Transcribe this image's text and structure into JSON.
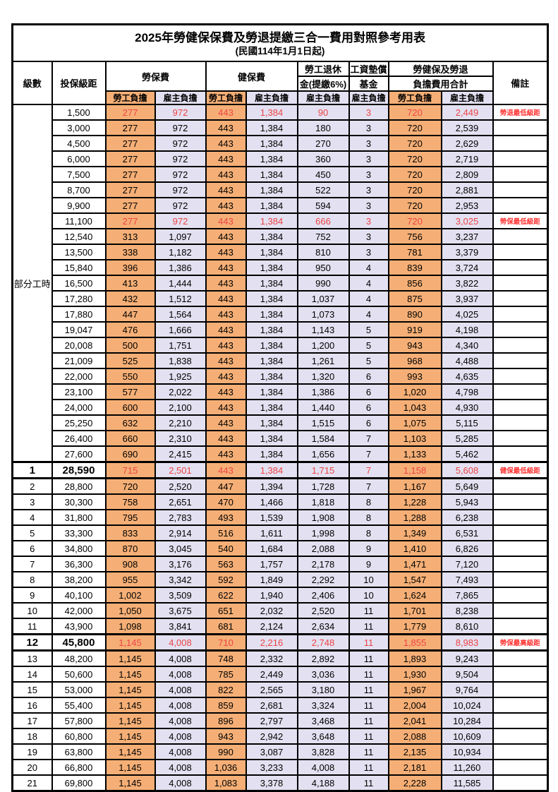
{
  "title": "2025年勞健保保費及勞退提繳三合一費用對照參考用表",
  "subtitle": "(民國114年1月1日起)",
  "colors": {
    "employee_col_bg": "#F5AF76",
    "employer_col_bg": "#E3E1F1",
    "highlight_red": "#EC4446",
    "note_red": "#FF3333",
    "grid": "#000000"
  },
  "header": {
    "level": "級數",
    "salary": "投保級距",
    "labor_fee": "勞保費",
    "health_fee": "健保費",
    "pension_line1": "勞工退休",
    "pension_line2": "金(提繳6%)",
    "wage_fund_line1": "工資墊償",
    "wage_fund_line2": "基金",
    "total_line1": "勞健保及勞退",
    "total_line2": "負擔費用合計",
    "note": "備註",
    "employee": "勞工負擔",
    "employer": "雇主負擔"
  },
  "table": {
    "part_time_label": "部分工時",
    "part_time_rowspan": 23,
    "rows": [
      {
        "level": "",
        "salary": "1,500",
        "v": [
          "277",
          "972",
          "443",
          "1,384",
          "90",
          "3",
          "720",
          "2,449"
        ],
        "note": "勞退最低級距",
        "red": true
      },
      {
        "level": "",
        "salary": "3,000",
        "v": [
          "277",
          "972",
          "443",
          "1,384",
          "180",
          "3",
          "720",
          "2,539"
        ],
        "note": ""
      },
      {
        "level": "",
        "salary": "4,500",
        "v": [
          "277",
          "972",
          "443",
          "1,384",
          "270",
          "3",
          "720",
          "2,629"
        ],
        "note": ""
      },
      {
        "level": "",
        "salary": "6,000",
        "v": [
          "277",
          "972",
          "443",
          "1,384",
          "360",
          "3",
          "720",
          "2,719"
        ],
        "note": ""
      },
      {
        "level": "",
        "salary": "7,500",
        "v": [
          "277",
          "972",
          "443",
          "1,384",
          "450",
          "3",
          "720",
          "2,809"
        ],
        "note": ""
      },
      {
        "level": "",
        "salary": "8,700",
        "v": [
          "277",
          "972",
          "443",
          "1,384",
          "522",
          "3",
          "720",
          "2,881"
        ],
        "note": ""
      },
      {
        "level": "",
        "salary": "9,900",
        "v": [
          "277",
          "972",
          "443",
          "1,384",
          "594",
          "3",
          "720",
          "2,953"
        ],
        "note": ""
      },
      {
        "level": "",
        "salary": "11,100",
        "v": [
          "277",
          "972",
          "443",
          "1,384",
          "666",
          "3",
          "720",
          "3,025"
        ],
        "note": "勞保最低級距",
        "red": true
      },
      {
        "level": "",
        "salary": "12,540",
        "v": [
          "313",
          "1,097",
          "443",
          "1,384",
          "752",
          "3",
          "756",
          "3,237"
        ],
        "note": ""
      },
      {
        "level": "",
        "salary": "13,500",
        "v": [
          "338",
          "1,182",
          "443",
          "1,384",
          "810",
          "3",
          "781",
          "3,379"
        ],
        "note": ""
      },
      {
        "level": "",
        "salary": "15,840",
        "v": [
          "396",
          "1,386",
          "443",
          "1,384",
          "950",
          "4",
          "839",
          "3,724"
        ],
        "note": ""
      },
      {
        "level": "",
        "salary": "16,500",
        "v": [
          "413",
          "1,444",
          "443",
          "1,384",
          "990",
          "4",
          "856",
          "3,822"
        ],
        "note": ""
      },
      {
        "level": "",
        "salary": "17,280",
        "v": [
          "432",
          "1,512",
          "443",
          "1,384",
          "1,037",
          "4",
          "875",
          "3,937"
        ],
        "note": ""
      },
      {
        "level": "",
        "salary": "17,880",
        "v": [
          "447",
          "1,564",
          "443",
          "1,384",
          "1,073",
          "4",
          "890",
          "4,025"
        ],
        "note": ""
      },
      {
        "level": "",
        "salary": "19,047",
        "v": [
          "476",
          "1,666",
          "443",
          "1,384",
          "1,143",
          "5",
          "919",
          "4,198"
        ],
        "note": ""
      },
      {
        "level": "",
        "salary": "20,008",
        "v": [
          "500",
          "1,751",
          "443",
          "1,384",
          "1,200",
          "5",
          "943",
          "4,340"
        ],
        "note": ""
      },
      {
        "level": "",
        "salary": "21,009",
        "v": [
          "525",
          "1,838",
          "443",
          "1,384",
          "1,261",
          "5",
          "968",
          "4,488"
        ],
        "note": ""
      },
      {
        "level": "",
        "salary": "22,000",
        "v": [
          "550",
          "1,925",
          "443",
          "1,384",
          "1,320",
          "6",
          "993",
          "4,635"
        ],
        "note": ""
      },
      {
        "level": "",
        "salary": "23,100",
        "v": [
          "577",
          "2,022",
          "443",
          "1,384",
          "1,386",
          "6",
          "1,020",
          "4,798"
        ],
        "note": ""
      },
      {
        "level": "",
        "salary": "24,000",
        "v": [
          "600",
          "2,100",
          "443",
          "1,384",
          "1,440",
          "6",
          "1,043",
          "4,930"
        ],
        "note": ""
      },
      {
        "level": "",
        "salary": "25,250",
        "v": [
          "632",
          "2,210",
          "443",
          "1,384",
          "1,515",
          "6",
          "1,075",
          "5,115"
        ],
        "note": ""
      },
      {
        "level": "",
        "salary": "26,400",
        "v": [
          "660",
          "2,310",
          "443",
          "1,384",
          "1,584",
          "7",
          "1,103",
          "5,285"
        ],
        "note": ""
      },
      {
        "level": "",
        "salary": "27,600",
        "v": [
          "690",
          "2,415",
          "443",
          "1,384",
          "1,656",
          "7",
          "1,133",
          "5,462"
        ],
        "note": ""
      },
      {
        "level": "1",
        "salary": "28,590",
        "v": [
          "715",
          "2,501",
          "443",
          "1,384",
          "1,715",
          "7",
          "1,158",
          "5,608"
        ],
        "note": "健保最低級距",
        "red": true,
        "bold": true,
        "thick": true
      },
      {
        "level": "2",
        "salary": "28,800",
        "v": [
          "720",
          "2,520",
          "447",
          "1,394",
          "1,728",
          "7",
          "1,167",
          "5,649"
        ],
        "note": ""
      },
      {
        "level": "3",
        "salary": "30,300",
        "v": [
          "758",
          "2,651",
          "470",
          "1,466",
          "1,818",
          "8",
          "1,228",
          "5,943"
        ],
        "note": ""
      },
      {
        "level": "4",
        "salary": "31,800",
        "v": [
          "795",
          "2,783",
          "493",
          "1,539",
          "1,908",
          "8",
          "1,288",
          "6,238"
        ],
        "note": ""
      },
      {
        "level": "5",
        "salary": "33,300",
        "v": [
          "833",
          "2,914",
          "516",
          "1,611",
          "1,998",
          "8",
          "1,349",
          "6,531"
        ],
        "note": ""
      },
      {
        "level": "6",
        "salary": "34,800",
        "v": [
          "870",
          "3,045",
          "540",
          "1,684",
          "2,088",
          "9",
          "1,410",
          "6,826"
        ],
        "note": ""
      },
      {
        "level": "7",
        "salary": "36,300",
        "v": [
          "908",
          "3,176",
          "563",
          "1,757",
          "2,178",
          "9",
          "1,471",
          "7,120"
        ],
        "note": ""
      },
      {
        "level": "8",
        "salary": "38,200",
        "v": [
          "955",
          "3,342",
          "592",
          "1,849",
          "2,292",
          "10",
          "1,547",
          "7,493"
        ],
        "note": ""
      },
      {
        "level": "9",
        "salary": "40,100",
        "v": [
          "1,002",
          "3,509",
          "622",
          "1,940",
          "2,406",
          "10",
          "1,624",
          "7,865"
        ],
        "note": ""
      },
      {
        "level": "10",
        "salary": "42,000",
        "v": [
          "1,050",
          "3,675",
          "651",
          "2,032",
          "2,520",
          "11",
          "1,701",
          "8,238"
        ],
        "note": ""
      },
      {
        "level": "11",
        "salary": "43,900",
        "v": [
          "1,098",
          "3,841",
          "681",
          "2,124",
          "2,634",
          "11",
          "1,779",
          "8,610"
        ],
        "note": ""
      },
      {
        "level": "12",
        "salary": "45,800",
        "v": [
          "1,145",
          "4,008",
          "710",
          "2,216",
          "2,748",
          "11",
          "1,855",
          "8,983"
        ],
        "note": "勞保最高級距",
        "red": true,
        "bold": true,
        "thick": true
      },
      {
        "level": "13",
        "salary": "48,200",
        "v": [
          "1,145",
          "4,008",
          "748",
          "2,332",
          "2,892",
          "11",
          "1,893",
          "9,243"
        ],
        "note": ""
      },
      {
        "level": "14",
        "salary": "50,600",
        "v": [
          "1,145",
          "4,008",
          "785",
          "2,449",
          "3,036",
          "11",
          "1,930",
          "9,504"
        ],
        "note": ""
      },
      {
        "level": "15",
        "salary": "53,000",
        "v": [
          "1,145",
          "4,008",
          "822",
          "2,565",
          "3,180",
          "11",
          "1,967",
          "9,764"
        ],
        "note": ""
      },
      {
        "level": "16",
        "salary": "55,400",
        "v": [
          "1,145",
          "4,008",
          "859",
          "2,681",
          "3,324",
          "11",
          "2,004",
          "10,024"
        ],
        "note": ""
      },
      {
        "level": "17",
        "salary": "57,800",
        "v": [
          "1,145",
          "4,008",
          "896",
          "2,797",
          "3,468",
          "11",
          "2,041",
          "10,284"
        ],
        "note": ""
      },
      {
        "level": "18",
        "salary": "60,800",
        "v": [
          "1,145",
          "4,008",
          "943",
          "2,942",
          "3,648",
          "11",
          "2,088",
          "10,609"
        ],
        "note": ""
      },
      {
        "level": "19",
        "salary": "63,800",
        "v": [
          "1,145",
          "4,008",
          "990",
          "3,087",
          "3,828",
          "11",
          "2,135",
          "10,934"
        ],
        "note": ""
      },
      {
        "level": "20",
        "salary": "66,800",
        "v": [
          "1,145",
          "4,008",
          "1,036",
          "3,233",
          "4,008",
          "11",
          "2,181",
          "11,260"
        ],
        "note": ""
      },
      {
        "level": "21",
        "salary": "69,800",
        "v": [
          "1,145",
          "4,008",
          "1,083",
          "3,378",
          "4,188",
          "11",
          "2,228",
          "11,585"
        ],
        "note": ""
      }
    ]
  }
}
